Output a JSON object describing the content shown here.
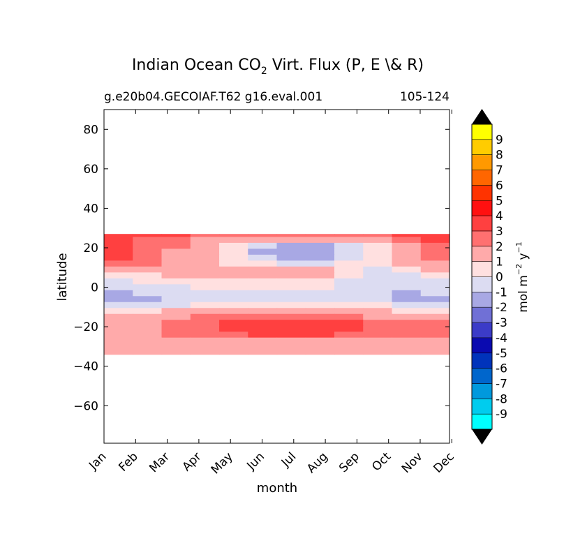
{
  "chart_data": {
    "type": "heatmap",
    "title_main": "Indian Ocean CO",
    "title_sub": "2",
    "title_rest": " Virt. Flux (P, E \\& R)",
    "subtitle_left": "g.e20b04.GECOIAF.T62 g16.eval.001",
    "subtitle_right": "105-124",
    "xlabel": "month",
    "ylabel": "latitude",
    "x_categories": [
      "Jan",
      "Feb",
      "Mar",
      "Apr",
      "May",
      "Jun",
      "Jul",
      "Aug",
      "Sep",
      "Oct",
      "Nov",
      "Dec"
    ],
    "y_ticks": [
      80,
      60,
      40,
      20,
      0,
      -20,
      -40,
      -60
    ],
    "y_tick_labels": [
      "80",
      "60",
      "40",
      "20",
      "0",
      "−20",
      "−40",
      "−60"
    ],
    "ylim": [
      -79,
      90
    ],
    "grid": false,
    "data_lat_range": [
      -34,
      27
    ],
    "data_latitudes": [
      27,
      24,
      21,
      18,
      15,
      12,
      9,
      6,
      3,
      0,
      -3,
      -6,
      -9,
      -12,
      -15,
      -18,
      -21,
      -24,
      -27,
      -30,
      -33
    ],
    "z_values": [
      [
        3,
        3,
        3,
        2,
        2,
        2,
        2,
        2,
        2,
        2,
        3,
        3
      ],
      [
        3,
        2,
        2,
        1,
        1,
        1,
        1,
        1,
        1,
        1,
        2,
        3
      ],
      [
        3,
        2,
        2,
        1,
        0,
        -1,
        -2,
        -2,
        -1,
        0,
        1,
        2
      ],
      [
        3,
        2,
        1,
        1,
        0,
        -2,
        -2,
        -2,
        -1,
        0,
        1,
        2
      ],
      [
        3,
        2,
        1,
        1,
        0,
        -1,
        -2,
        -2,
        -1,
        0,
        1,
        2
      ],
      [
        2,
        2,
        1,
        1,
        0,
        0,
        -1,
        -1,
        0,
        0,
        1,
        1
      ],
      [
        1,
        1,
        1,
        1,
        1,
        1,
        1,
        1,
        0,
        -1,
        0,
        1
      ],
      [
        0,
        0,
        1,
        1,
        1,
        1,
        1,
        1,
        0,
        -1,
        -1,
        0
      ],
      [
        -1,
        0,
        0,
        0,
        0,
        0,
        0,
        0,
        -1,
        -1,
        -1,
        -1
      ],
      [
        -1,
        -1,
        -1,
        0,
        0,
        0,
        0,
        0,
        -1,
        -1,
        -1,
        -1
      ],
      [
        -2,
        -1,
        -1,
        -1,
        -1,
        -1,
        -1,
        -1,
        -1,
        -1,
        -2,
        -1
      ],
      [
        -2,
        -2,
        -1,
        -1,
        -1,
        -1,
        -1,
        -1,
        -1,
        -1,
        -2,
        -2
      ],
      [
        -1,
        -1,
        -1,
        0,
        0,
        0,
        0,
        0,
        0,
        0,
        -1,
        -1
      ],
      [
        0,
        0,
        1,
        1,
        1,
        1,
        1,
        1,
        1,
        1,
        0,
        0
      ],
      [
        1,
        1,
        1,
        2,
        2,
        2,
        2,
        2,
        2,
        1,
        1,
        1
      ],
      [
        1,
        1,
        2,
        2,
        3,
        3,
        3,
        3,
        3,
        2,
        2,
        2
      ],
      [
        1,
        1,
        2,
        2,
        3,
        3,
        3,
        3,
        3,
        2,
        2,
        2
      ],
      [
        1,
        1,
        2,
        2,
        2,
        3,
        3,
        3,
        2,
        2,
        2,
        2
      ],
      [
        1,
        1,
        1,
        1,
        1,
        1,
        1,
        1,
        1,
        1,
        1,
        1
      ],
      [
        1,
        1,
        1,
        1,
        1,
        1,
        1,
        1,
        1,
        1,
        1,
        1
      ],
      [
        1,
        1,
        1,
        1,
        1,
        1,
        1,
        1,
        1,
        1,
        1,
        1
      ]
    ],
    "colorbar": {
      "label_main": "mol m",
      "label_exp1": "−2",
      "label_mid": "  y",
      "label_exp2": "−1",
      "levels": [
        -9,
        -8,
        -7,
        -6,
        -5,
        -4,
        -3,
        -2,
        -1,
        0,
        1,
        2,
        3,
        4,
        5,
        6,
        7,
        8,
        9
      ],
      "tick_labels": [
        "-9",
        "-8",
        "-7",
        "-6",
        "-5",
        "-4",
        "-3",
        "-2",
        "-1",
        "0",
        "1",
        "2",
        "3",
        "4",
        "5",
        "6",
        "7",
        "8",
        "9"
      ],
      "colors": [
        "#00ffff",
        "#00ccee",
        "#0099dd",
        "#0066cc",
        "#0033bb",
        "#0a0ab0",
        "#3b3bc8",
        "#7070d6",
        "#a8a8e4",
        "#dcdcf2",
        "#ffe0e0",
        "#ffaaaa",
        "#ff7070",
        "#ff4040",
        "#ff1010",
        "#ff3300",
        "#ff6600",
        "#ff9900",
        "#ffcc00",
        "#ffff00"
      ],
      "extend_color": "#000000"
    }
  }
}
